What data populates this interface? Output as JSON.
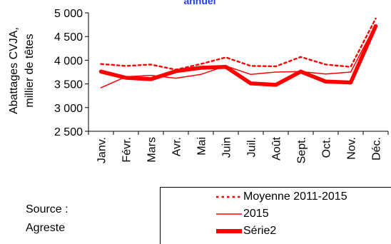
{
  "chart_data": {
    "type": "line",
    "title": "annuel",
    "ylabel": "Abattages CVJA,\nmillier de têtes",
    "categories": [
      "Janv.",
      "Févr.",
      "Mars",
      "Avr.",
      "Mai",
      "Juin",
      "Juil.",
      "Août",
      "Sept.",
      "Oct.",
      "Nov.",
      "Déc."
    ],
    "ylim": [
      2500,
      5000
    ],
    "yticks": [
      "2 500",
      "3 000",
      "3 500",
      "4 000",
      "4 500",
      "5 000"
    ],
    "ytick_values": [
      2500,
      3000,
      3500,
      4000,
      4500,
      5000
    ],
    "grid": false,
    "legend_position": "bottom-right",
    "series": [
      {
        "name": "Moyenne 2011-2015",
        "style": "dotted",
        "color": "#ff0000",
        "values": [
          3920,
          3880,
          3910,
          3800,
          3920,
          4060,
          3880,
          3870,
          4070,
          3910,
          3860,
          4880
        ]
      },
      {
        "name": "2015",
        "style": "thin",
        "color": "#ff0000",
        "values": [
          3420,
          3650,
          3680,
          3620,
          3700,
          3880,
          3700,
          3750,
          3760,
          3710,
          3750,
          4750
        ]
      },
      {
        "name": "Série2",
        "style": "thick",
        "color": "#ff0000",
        "values": [
          3760,
          3630,
          3600,
          3770,
          3840,
          3860,
          3510,
          3480,
          3760,
          3550,
          3530,
          4720
        ]
      }
    ]
  },
  "source": {
    "line1": "Source :",
    "line2": "Agreste"
  }
}
